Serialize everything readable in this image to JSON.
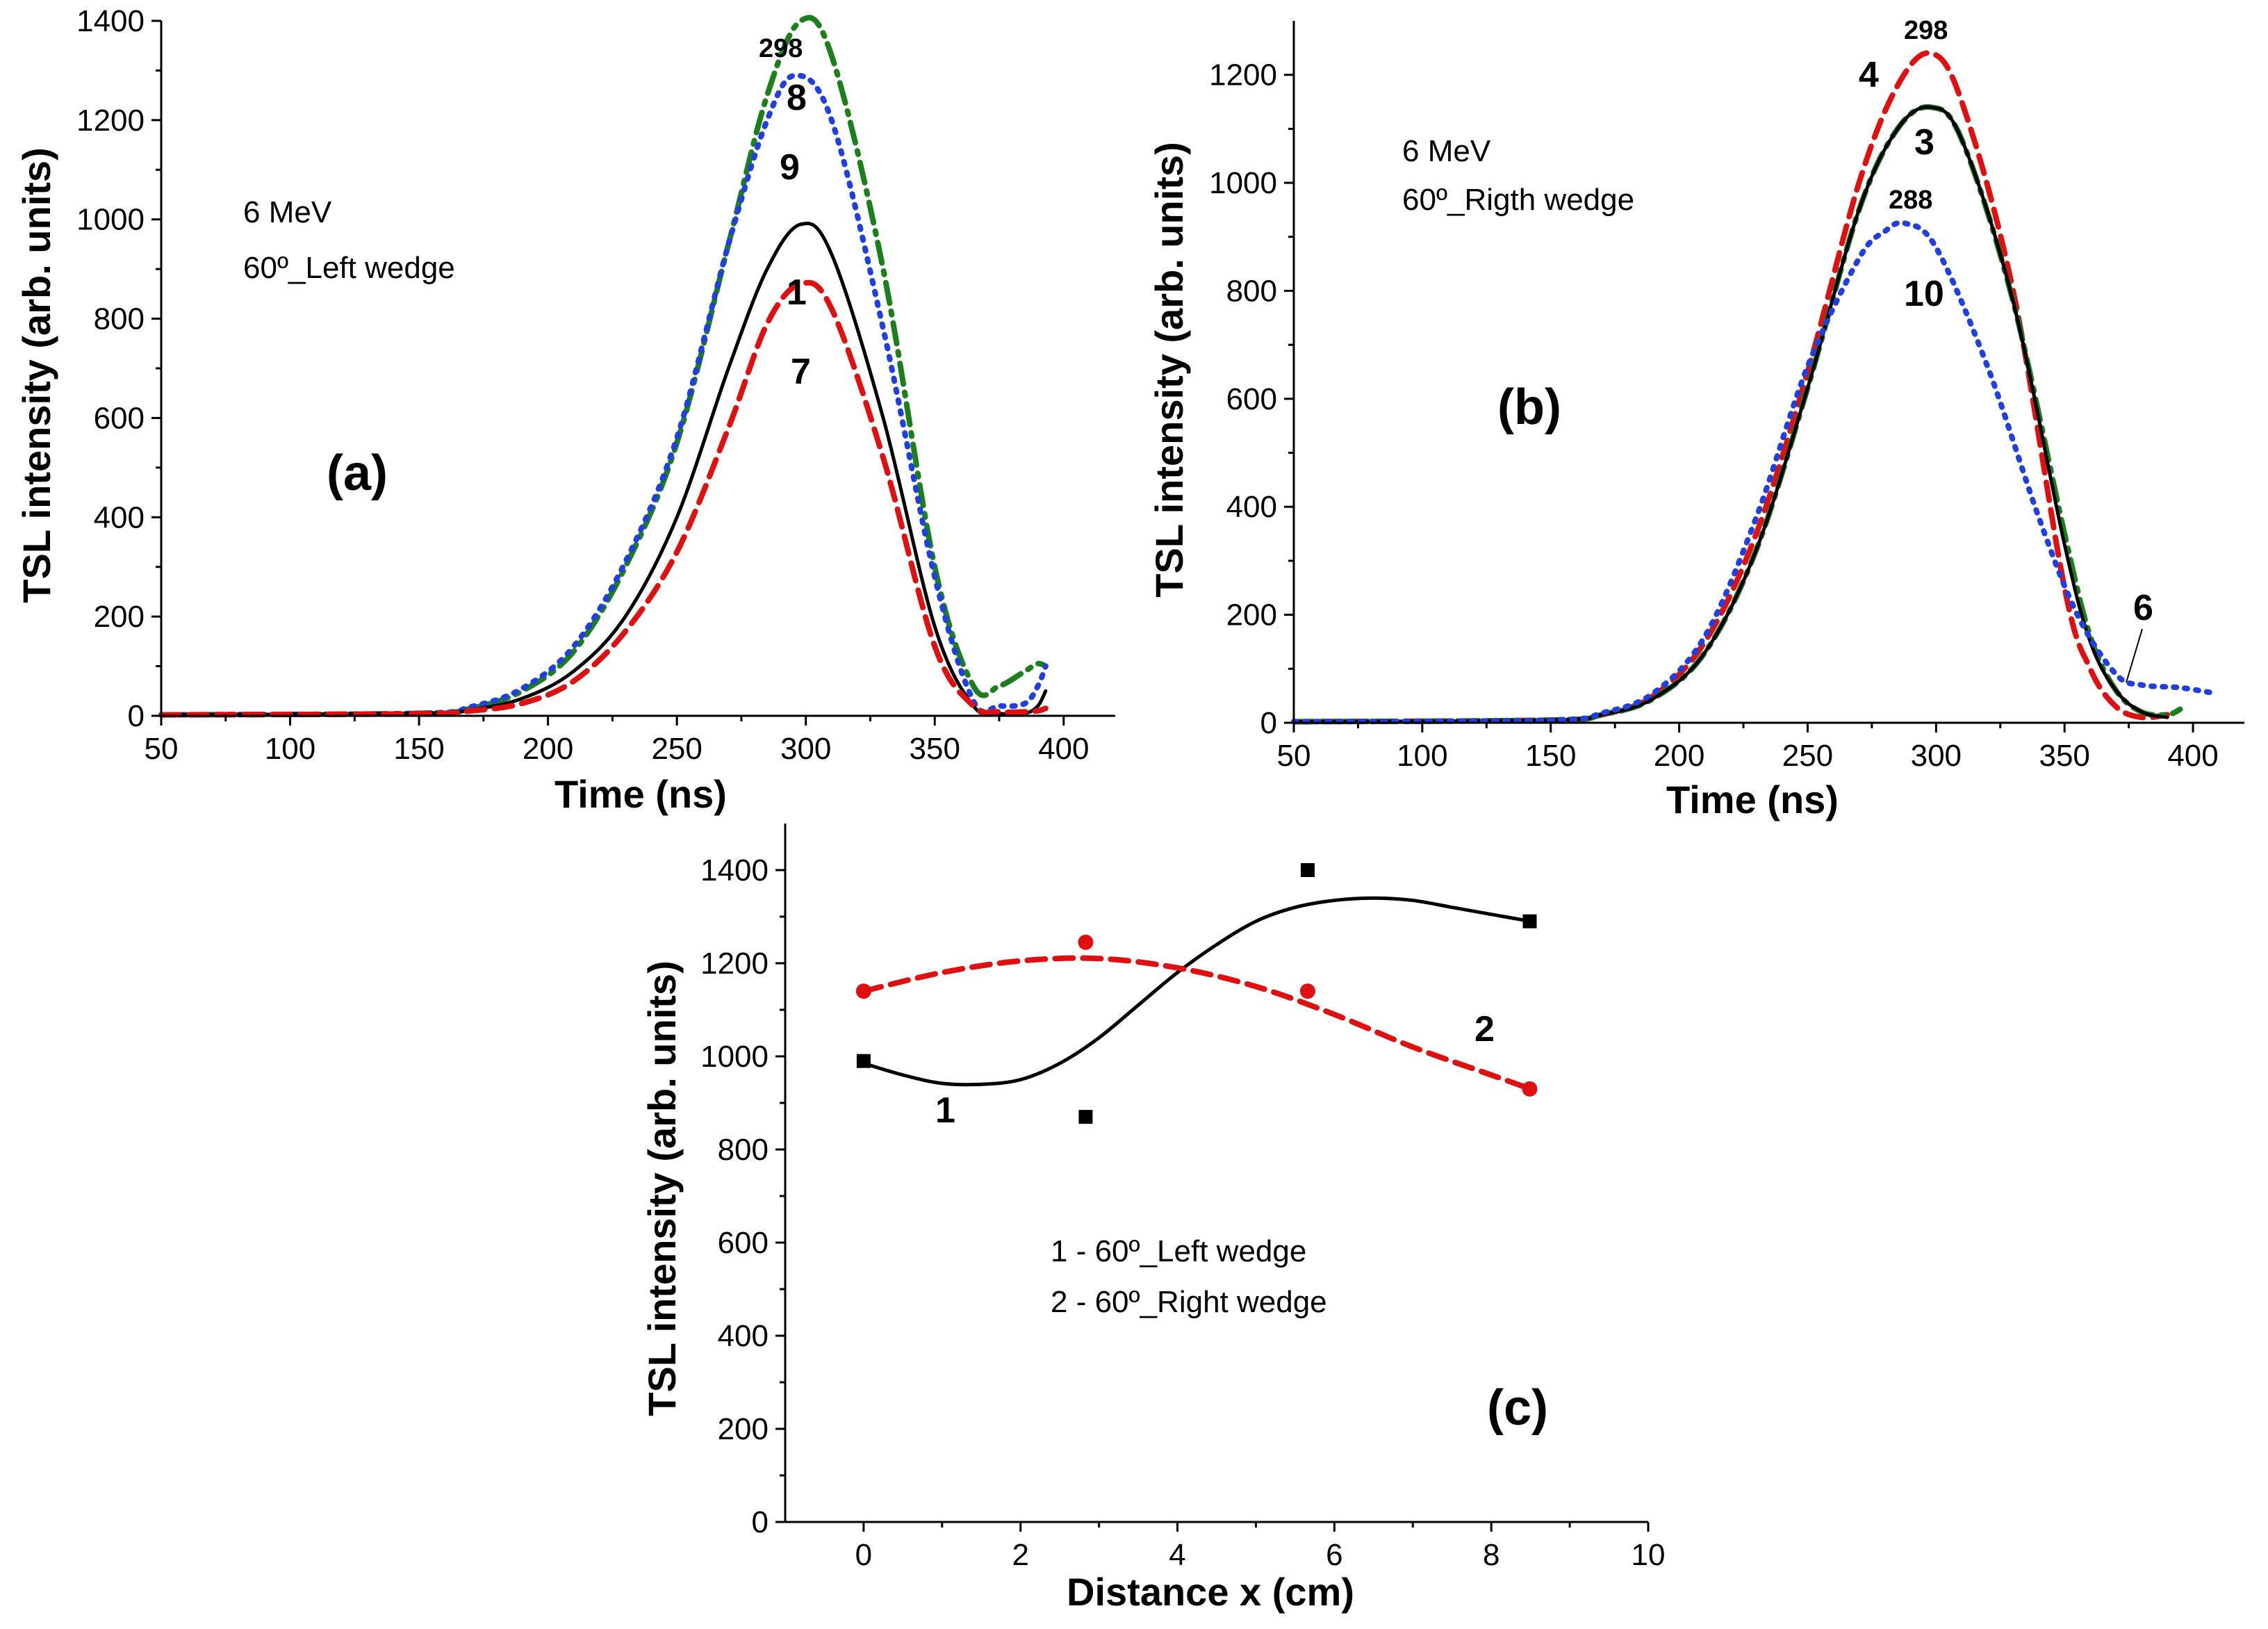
{
  "chart_data": [
    {
      "id": "a",
      "type": "line",
      "panel_label": "(a)",
      "xlabel": "Time (ns)",
      "ylabel": "TSL intensity (arb. units)",
      "xlim": [
        50,
        420
      ],
      "ylim": [
        0,
        1400
      ],
      "xticks": [
        50,
        100,
        150,
        200,
        250,
        300,
        350,
        400
      ],
      "yticks": [
        0,
        200,
        400,
        600,
        800,
        1000,
        1200,
        1400
      ],
      "annotations": [
        "6 MeV",
        "60º_Left wedge",
        "298"
      ],
      "series": [
        {
          "name": "8",
          "color": "#1b7f1b",
          "dash": "dashdot",
          "x": [
            50,
            150,
            170,
            190,
            210,
            230,
            250,
            270,
            285,
            298,
            310,
            330,
            350,
            365,
            375,
            385,
            390,
            393
          ],
          "y": [
            2,
            5,
            15,
            50,
            130,
            300,
            550,
            950,
            1250,
            1400,
            1330,
            900,
            300,
            60,
            60,
            90,
            105,
            100
          ]
        },
        {
          "name": "9",
          "color": "#1f3fe0",
          "dash": "dot",
          "x": [
            50,
            150,
            170,
            190,
            210,
            230,
            250,
            270,
            285,
            296,
            310,
            330,
            350,
            365,
            375,
            385,
            390,
            393
          ],
          "y": [
            2,
            5,
            18,
            55,
            140,
            310,
            560,
            950,
            1200,
            1290,
            1200,
            780,
            280,
            30,
            20,
            25,
            60,
            100
          ]
        },
        {
          "name": "1",
          "color": "#000000",
          "dash": "solid",
          "x": [
            50,
            150,
            170,
            190,
            210,
            230,
            250,
            270,
            285,
            298,
            310,
            330,
            350,
            365,
            375,
            385,
            390,
            393
          ],
          "y": [
            2,
            5,
            12,
            35,
            90,
            200,
            400,
            700,
            900,
            990,
            930,
            600,
            180,
            20,
            5,
            5,
            20,
            50
          ]
        },
        {
          "name": "7",
          "color": "#e01010",
          "dash": "dash",
          "x": [
            50,
            150,
            170,
            190,
            210,
            230,
            250,
            270,
            285,
            298,
            310,
            330,
            350,
            365,
            375,
            385,
            390,
            393
          ],
          "y": [
            2,
            4,
            10,
            25,
            70,
            170,
            330,
            580,
            790,
            870,
            820,
            520,
            140,
            20,
            8,
            8,
            10,
            15
          ]
        }
      ]
    },
    {
      "id": "b",
      "type": "line",
      "panel_label": "(b)",
      "xlabel": "Time (ns)",
      "ylabel": "TSL intensity (arb. units)",
      "xlim": [
        50,
        420
      ],
      "ylim": [
        0,
        1300
      ],
      "xticks": [
        50,
        100,
        150,
        200,
        250,
        300,
        350,
        400
      ],
      "yticks": [
        0,
        200,
        400,
        600,
        800,
        1000,
        1200
      ],
      "annotations": [
        "6 MeV",
        "60º_Rigth wedge",
        "298",
        "288"
      ],
      "series": [
        {
          "name": "4",
          "color": "#e01010",
          "dash": "dash",
          "x": [
            50,
            150,
            170,
            190,
            210,
            230,
            250,
            270,
            285,
            298,
            310,
            330,
            350,
            360,
            370,
            380,
            390
          ],
          "y": [
            2,
            5,
            15,
            50,
            150,
            350,
            650,
            1000,
            1180,
            1240,
            1150,
            800,
            250,
            100,
            30,
            10,
            15
          ]
        },
        {
          "name": "3",
          "color": "#1b7f1b",
          "dash": "dashdot",
          "x": [
            50,
            150,
            170,
            190,
            210,
            230,
            250,
            270,
            285,
            298,
            310,
            330,
            350,
            360,
            370,
            380,
            390,
            395
          ],
          "y": [
            2,
            5,
            15,
            45,
            130,
            320,
            620,
            950,
            1100,
            1140,
            1080,
            780,
            350,
            160,
            60,
            20,
            15,
            25
          ]
        },
        {
          "name": "6",
          "color": "#000000",
          "dash": "solid",
          "x": [
            50,
            150,
            170,
            190,
            210,
            230,
            250,
            270,
            285,
            298,
            310,
            330,
            350,
            360,
            370,
            380,
            390
          ],
          "y": [
            2,
            5,
            15,
            45,
            130,
            320,
            620,
            950,
            1100,
            1140,
            1080,
            780,
            330,
            150,
            60,
            20,
            10
          ]
        },
        {
          "name": "10",
          "color": "#1f3fe0",
          "dash": "dot",
          "x": [
            50,
            150,
            170,
            190,
            210,
            230,
            250,
            270,
            280,
            288,
            300,
            320,
            340,
            355,
            370,
            380,
            395,
            408
          ],
          "y": [
            2,
            5,
            18,
            55,
            160,
            380,
            660,
            860,
            910,
            925,
            880,
            660,
            380,
            200,
            90,
            70,
            65,
            55
          ]
        }
      ]
    },
    {
      "id": "c",
      "type": "scatter",
      "panel_label": "(c)",
      "xlabel": "Distance x (cm)",
      "ylabel": "TSL intensity (arb. units)",
      "xlim": [
        -1,
        10
      ],
      "ylim": [
        0,
        1500
      ],
      "xticks": [
        0,
        2,
        4,
        6,
        8,
        10
      ],
      "yticks": [
        0,
        200,
        400,
        600,
        800,
        1000,
        1200,
        1400
      ],
      "legend": [
        "1 - 60º_Left wedge",
        "2 - 60º_Right wedge"
      ],
      "series": [
        {
          "name": "1",
          "color": "#000000",
          "marker": "square",
          "dash": "solid",
          "x": [
            0,
            2.83,
            5.66,
            8.49
          ],
          "y": [
            990,
            870,
            1400,
            1290
          ],
          "fit_x": [
            0,
            0.5,
            1,
            1.5,
            2,
            2.5,
            3,
            3.5,
            4,
            4.5,
            5,
            5.5,
            6,
            6.5,
            7,
            7.5,
            8,
            8.5
          ],
          "fit_y": [
            985,
            960,
            942,
            940,
            950,
            985,
            1040,
            1110,
            1180,
            1240,
            1290,
            1320,
            1335,
            1340,
            1335,
            1320,
            1305,
            1290
          ]
        },
        {
          "name": "2",
          "color": "#e01010",
          "marker": "circle",
          "dash": "dash",
          "x": [
            0,
            2.83,
            5.66,
            8.49
          ],
          "y": [
            1140,
            1245,
            1140,
            930
          ],
          "fit_x": [
            0,
            1,
            2,
            3,
            4,
            5,
            6,
            7,
            8,
            8.5
          ],
          "fit_y": [
            1140,
            1180,
            1205,
            1210,
            1190,
            1150,
            1090,
            1020,
            960,
            930
          ]
        }
      ]
    }
  ]
}
